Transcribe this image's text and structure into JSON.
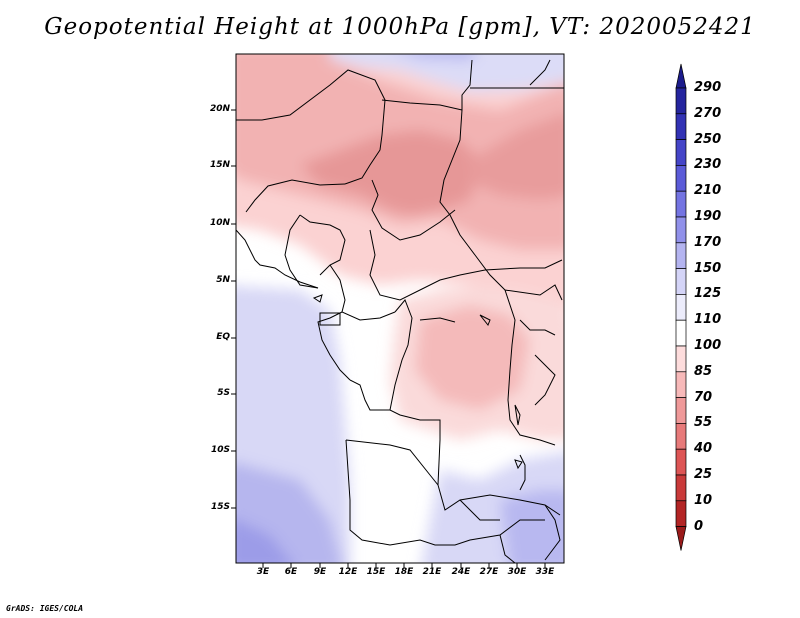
{
  "title": "Geopotential Height at 1000hPa [gpm], VT: 2020052421",
  "credit": "GrADS: IGES/COLA",
  "map": {
    "variable": "Geopotential Height at 1000hPa",
    "units": "gpm",
    "valid_time": "2020052421",
    "lat_ticks": [
      "20N",
      "15N",
      "10N",
      "5N",
      "EQ",
      "5S",
      "10S",
      "15S"
    ],
    "lon_ticks": [
      "3E",
      "6E",
      "9E",
      "12E",
      "15E",
      "18E",
      "21E",
      "24E",
      "27E",
      "30E",
      "33E"
    ]
  },
  "colorbar": {
    "levels": [
      "290",
      "270",
      "250",
      "230",
      "210",
      "190",
      "170",
      "150",
      "125",
      "110",
      "100",
      "85",
      "70",
      "55",
      "40",
      "25",
      "10",
      "0"
    ],
    "colors": {
      "top_arrow": "#1c1c8c",
      "c270": "#25259e",
      "c250": "#3232b4",
      "c230": "#4545c8",
      "c210": "#5b5bd8",
      "c190": "#7474e2",
      "c170": "#9191ea",
      "c150": "#b4b4f0",
      "c125": "#d4d4f7",
      "c110": "#ececfb",
      "c100": "#ffffff",
      "c85": "#fddcdc",
      "c70": "#f7b9b9",
      "c55": "#ef9999",
      "c40": "#e77a7a",
      "c25": "#dd5555",
      "c10": "#c93a3a",
      "c0": "#b32525",
      "bottom_arrow": "#9a1a1a"
    }
  }
}
